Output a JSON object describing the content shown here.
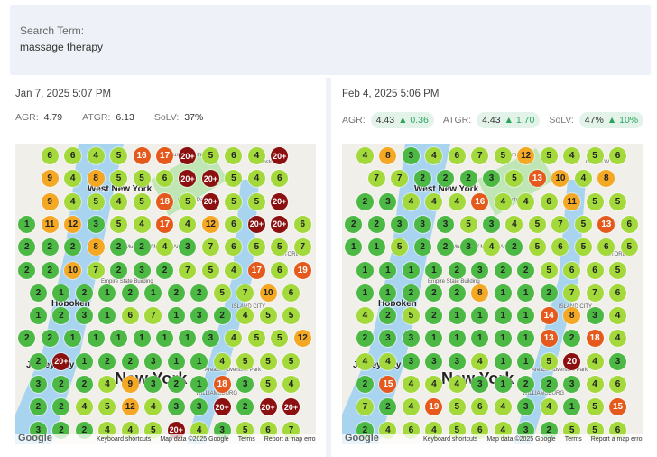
{
  "search": {
    "label": "Search Term:",
    "value": "massage therapy"
  },
  "panels": [
    {
      "date": "Jan 7, 2025 5:07 PM",
      "stats": {
        "agr_label": "AGR:",
        "agr": "4.79",
        "atgr_label": "ATGR:",
        "atgr": "6.13",
        "solv_label": "SoLV:",
        "solv": "37%"
      },
      "grid": [
        [
          "6",
          "6",
          "4",
          "5",
          "16",
          "17",
          "20+",
          "5",
          "6",
          "4",
          "20+"
        ],
        [
          "9",
          "4",
          "8",
          "5",
          "5",
          "6",
          "20+",
          "20+",
          "5",
          "4",
          "6"
        ],
        [
          "9",
          "4",
          "5",
          "4",
          "5",
          "18",
          "5",
          "20+",
          "5",
          "5",
          "20+"
        ],
        [
          "1",
          "11",
          "12",
          "3",
          "5",
          "4",
          "17",
          "4",
          "12",
          "6",
          "20+",
          "20+",
          "6"
        ],
        [
          "2",
          "2",
          "2",
          "8",
          "2",
          "2",
          "4",
          "3",
          "7",
          "6",
          "5",
          "5",
          "7"
        ],
        [
          "2",
          "2",
          "10",
          "7",
          "2",
          "3",
          "2",
          "7",
          "5",
          "4",
          "17",
          "6",
          "19"
        ],
        [
          "2",
          "1",
          "2",
          "1",
          "2",
          "1",
          "2",
          "2",
          "5",
          "7",
          "10",
          "6"
        ],
        [
          "1",
          "2",
          "3",
          "1",
          "6",
          "7",
          "1",
          "3",
          "2",
          "4",
          "5",
          "5"
        ],
        [
          "2",
          "2",
          "1",
          "1",
          "1",
          "1",
          "1",
          "1",
          "3",
          "4",
          "5",
          "5",
          "12"
        ],
        [
          "2",
          "20+",
          "1",
          "2",
          "2",
          "3",
          "1",
          "1",
          "4",
          "5",
          "5",
          "5"
        ],
        [
          "3",
          "2",
          "2",
          "4",
          "9",
          "3",
          "2",
          "1",
          "18",
          "3",
          "5",
          "4"
        ],
        [
          "2",
          "2",
          "4",
          "5",
          "12",
          "4",
          "3",
          "3",
          "20+",
          "2",
          "20+",
          "20+"
        ],
        [
          "3",
          "2",
          "2",
          "4",
          "4",
          "5",
          "20+",
          "4",
          "3",
          "5",
          "6",
          "7"
        ]
      ]
    },
    {
      "date": "Feb 4, 2025 5:06 PM",
      "stats": {
        "agr_label": "AGR:",
        "agr": "4.43",
        "agr_change": "▲ 0.36",
        "atgr_label": "ATGR:",
        "atgr": "4.43",
        "atgr_change": "▲ 1.70",
        "solv_label": "SoLV:",
        "solv": "47%",
        "solv_change": "▲ 10%"
      },
      "grid": [
        [
          "4",
          "8",
          "3",
          "4",
          "6",
          "7",
          "5",
          "12",
          "5",
          "4",
          "5",
          "6"
        ],
        [
          "7",
          "7",
          "2",
          "2",
          "2",
          "3",
          "5",
          "13",
          "10",
          "4",
          "8"
        ],
        [
          "2",
          "3",
          "4",
          "4",
          "4",
          "16",
          "4",
          "4",
          "6",
          "11",
          "5",
          "5"
        ],
        [
          "2",
          "2",
          "3",
          "3",
          "3",
          "5",
          "3",
          "4",
          "5",
          "7",
          "5",
          "13",
          "6"
        ],
        [
          "1",
          "1",
          "5",
          "2",
          "2",
          "3",
          "4",
          "2",
          "5",
          "6",
          "5",
          "6",
          "5"
        ],
        [
          "1",
          "1",
          "1",
          "1",
          "2",
          "3",
          "2",
          "2",
          "5",
          "6",
          "6",
          "5"
        ],
        [
          "1",
          "1",
          "2",
          "2",
          "2",
          "8",
          "1",
          "1",
          "2",
          "7",
          "7",
          "6"
        ],
        [
          "4",
          "2",
          "5",
          "2",
          "1",
          "1",
          "1",
          "1",
          "14",
          "8",
          "3",
          "4"
        ],
        [
          "2",
          "3",
          "3",
          "1",
          "1",
          "1",
          "1",
          "1",
          "13",
          "2",
          "18",
          "4"
        ],
        [
          "4",
          "4",
          "3",
          "3",
          "3",
          "4",
          "1",
          "1",
          "5",
          "20",
          "4",
          "3"
        ],
        [
          "2",
          "15",
          "4",
          "4",
          "4",
          "3",
          "1",
          "2",
          "2",
          "3",
          "4",
          "6"
        ],
        [
          "7",
          "2",
          "4",
          "19",
          "5",
          "6",
          "4",
          "3",
          "4",
          "1",
          "5",
          "15"
        ],
        [
          "2",
          "4",
          "6",
          "4",
          "5",
          "6",
          "4",
          "3",
          "2",
          "5",
          "5",
          "6"
        ]
      ]
    }
  ],
  "map": {
    "labels": {
      "west_new_york": "West New York",
      "hoboken": "Hoboken",
      "jersey_city": "Jersey City",
      "new_york": "New York",
      "central_park": "Central Park",
      "museum": "Museum of the",
      "moma": "The Museum of Modern Art",
      "esb": "Empire State Building",
      "costco": "Costco W",
      "adventure_park": "Area53 Adventure Park",
      "williamsburg": "WILLIAMSBURG",
      "island_city": "ISLAND CITY",
      "astoria": "ASTORIA"
    },
    "footer": {
      "shortcuts": "Keyboard shortcuts",
      "mapdata": "Map data ©2025 Google",
      "terms": "Terms",
      "report": "Report a map error"
    },
    "logo": "Google"
  },
  "colors": {
    "top3": "#4cb944",
    "mid": "#a3d93a",
    "lowmid": "#f4a823",
    "low": "#e55a1c",
    "out": "#8c1010",
    "water": "#a9d4ef",
    "park": "#bfe6b4",
    "land": "#f1efe9"
  }
}
